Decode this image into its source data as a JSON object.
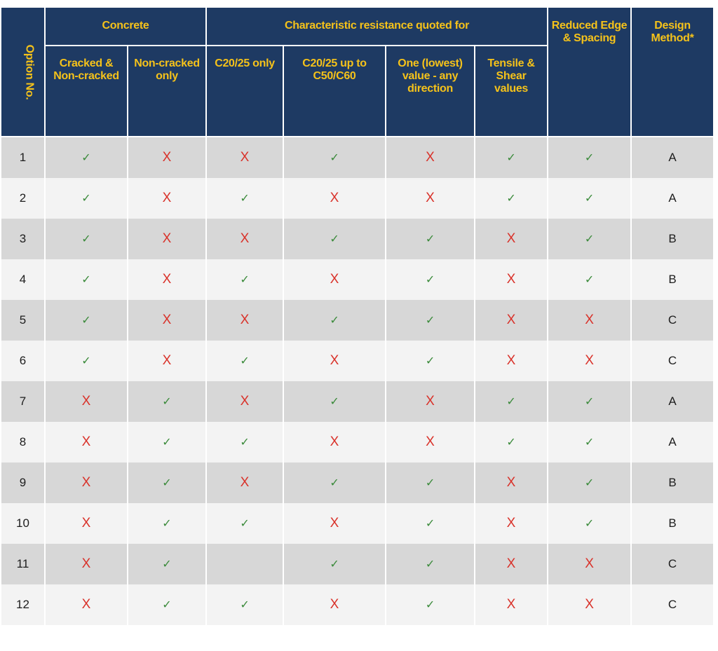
{
  "headers": {
    "option": "Option No.",
    "concrete": "Concrete",
    "characteristic": "Characteristic resistance quoted for",
    "reduced": "Reduced Edge & Spacing",
    "design": "Design Method*",
    "cracked": "Cracked & Non-cracked",
    "non_cracked": "Non-cracked only",
    "c2025_only": "C20/25 only",
    "c2025_up": "C20/25 up to C50/C60",
    "one_value": "One (lowest) value - any direction",
    "tensile_shear": "Tensile & Shear values"
  },
  "symbols": {
    "yes": "✓",
    "no": "X"
  },
  "colors": {
    "header_bg": "#1e3a63",
    "header_text": "#f5c21a",
    "yes": "#3a8a3a",
    "no": "#d9322a",
    "row_dark": "#d7d7d7",
    "row_light": "#f3f3f3"
  },
  "rows": [
    {
      "option": "1",
      "cells": [
        "yes",
        "no",
        "no",
        "yes",
        "no",
        "yes",
        "yes"
      ],
      "method": "A"
    },
    {
      "option": "2",
      "cells": [
        "yes",
        "no",
        "yes",
        "no",
        "no",
        "yes",
        "yes"
      ],
      "method": "A"
    },
    {
      "option": "3",
      "cells": [
        "yes",
        "no",
        "no",
        "yes",
        "yes",
        "no",
        "yes"
      ],
      "method": "B"
    },
    {
      "option": "4",
      "cells": [
        "yes",
        "no",
        "yes",
        "no",
        "yes",
        "no",
        "yes"
      ],
      "method": "B"
    },
    {
      "option": "5",
      "cells": [
        "yes",
        "no",
        "no",
        "yes",
        "yes",
        "no",
        "no"
      ],
      "method": "C"
    },
    {
      "option": "6",
      "cells": [
        "yes",
        "no",
        "yes",
        "no",
        "yes",
        "no",
        "no"
      ],
      "method": "C"
    },
    {
      "option": "7",
      "cells": [
        "no",
        "yes",
        "no",
        "yes",
        "no",
        "yes",
        "yes"
      ],
      "method": "A"
    },
    {
      "option": "8",
      "cells": [
        "no",
        "yes",
        "yes",
        "no",
        "no",
        "yes",
        "yes"
      ],
      "method": "A"
    },
    {
      "option": "9",
      "cells": [
        "no",
        "yes",
        "no",
        "yes",
        "yes",
        "no",
        "yes"
      ],
      "method": "B"
    },
    {
      "option": "10",
      "cells": [
        "no",
        "yes",
        "yes",
        "no",
        "yes",
        "no",
        "yes"
      ],
      "method": "B"
    },
    {
      "option": "11",
      "cells": [
        "no",
        "yes",
        "",
        "yes",
        "yes",
        "no",
        "no"
      ],
      "method": "C"
    },
    {
      "option": "12",
      "cells": [
        "no",
        "yes",
        "yes",
        "no",
        "yes",
        "no",
        "no"
      ],
      "method": "C"
    }
  ]
}
